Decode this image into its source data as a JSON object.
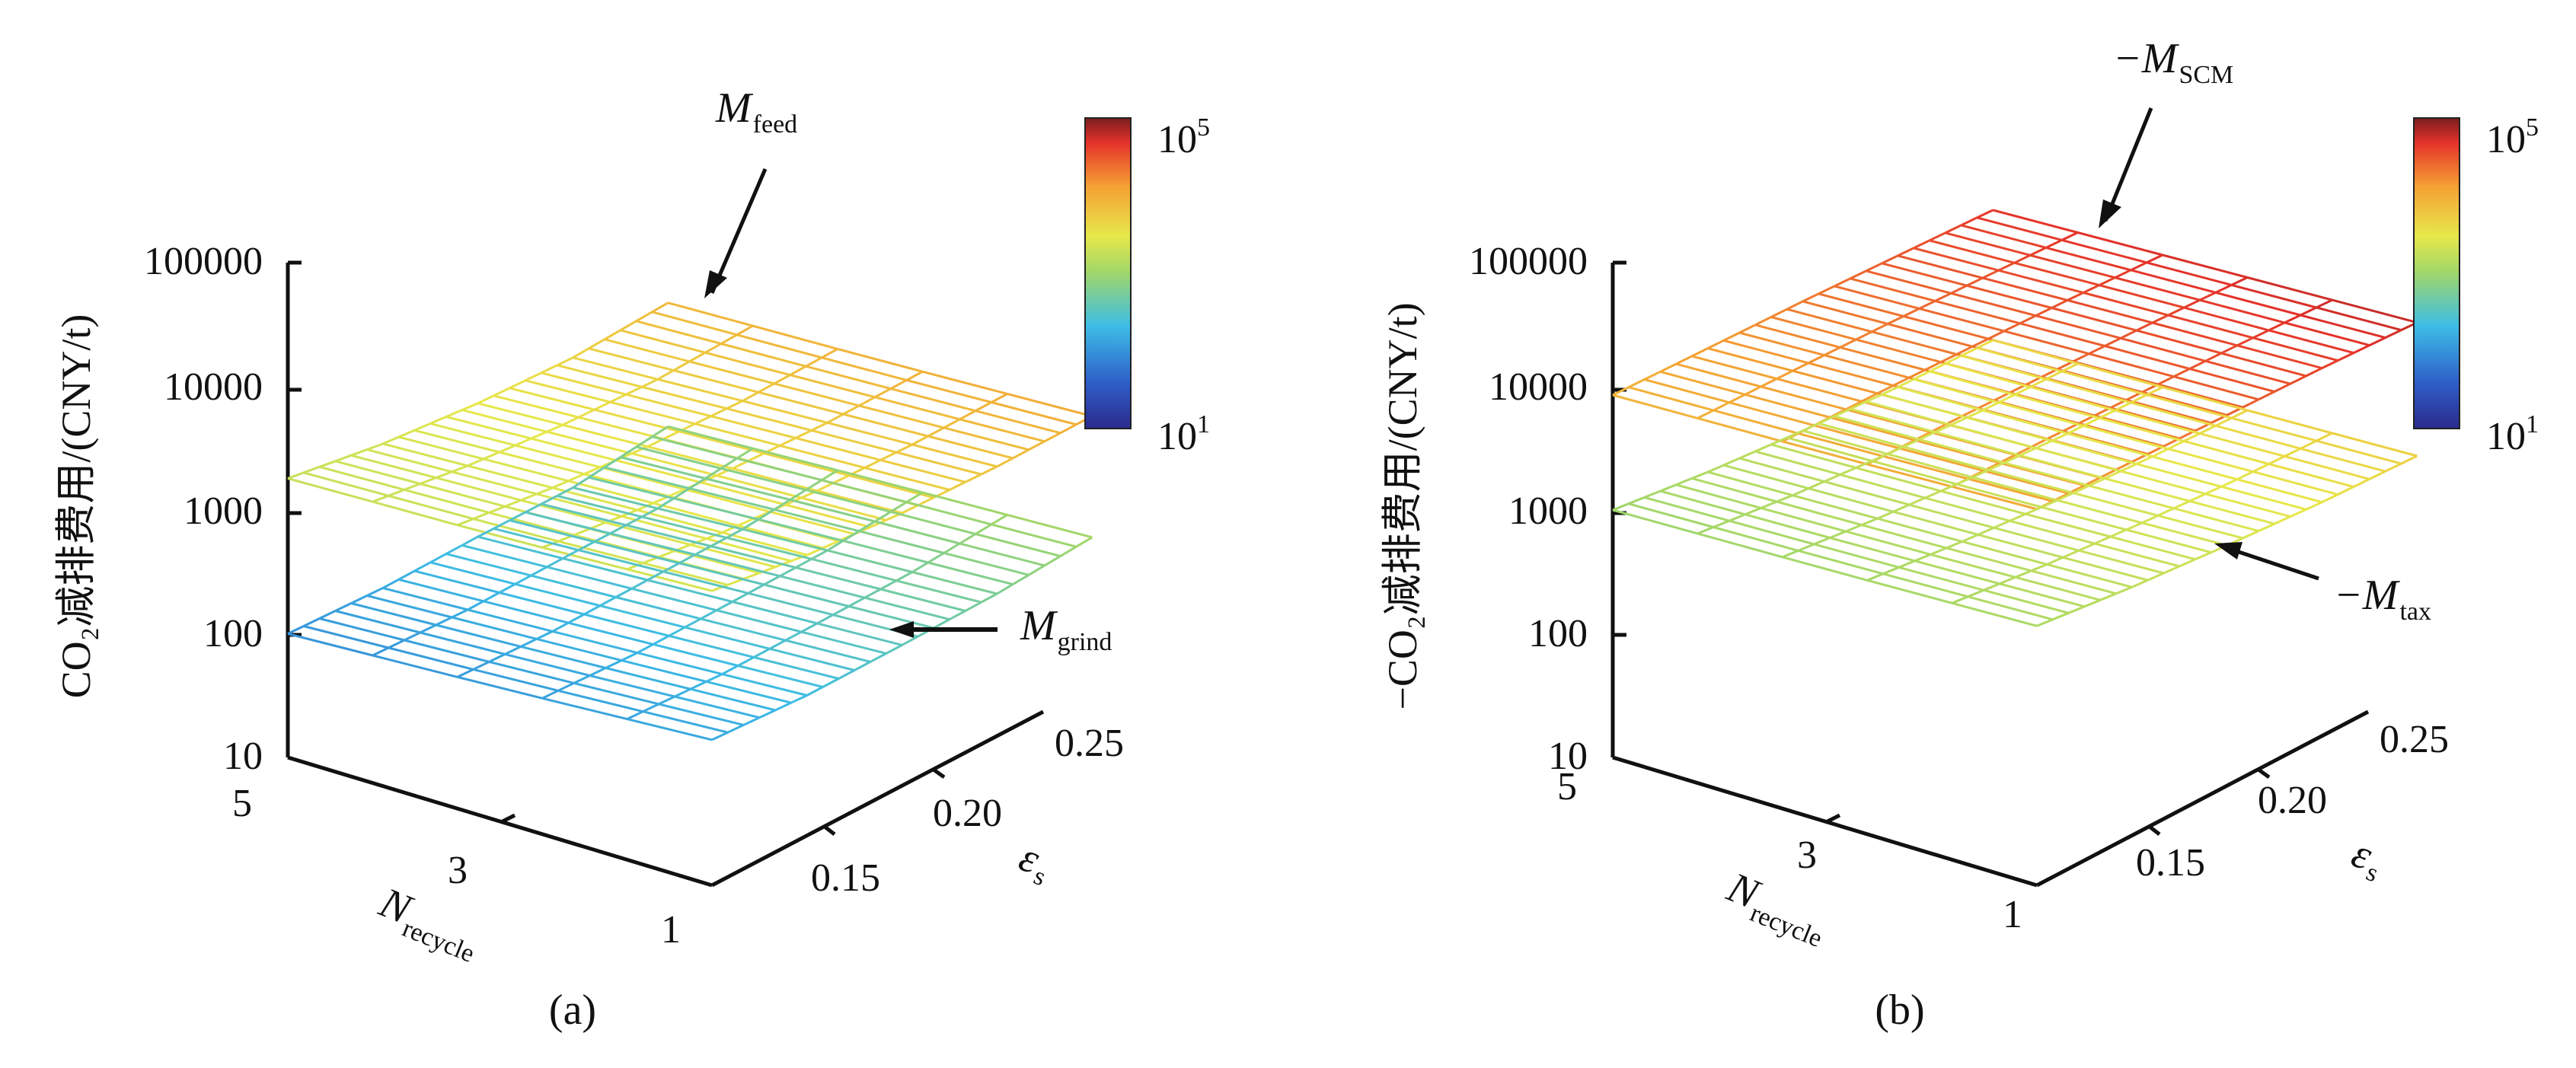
{
  "chart_data": [
    {
      "type": "surface3d",
      "panel_label": "(a)",
      "ylabel": "CO₂减排费用/(CNY/t)",
      "zticks": [
        "100000",
        "10000",
        "1000",
        "100",
        "10"
      ],
      "zlim": [
        10,
        100000
      ],
      "zscale": "log",
      "x_name": "N",
      "x_sub": "recycle",
      "x_ticks": [
        "5",
        "3",
        "1"
      ],
      "eps_name": "ε",
      "eps_sub": "s",
      "eps_ticks": [
        "0.15",
        "0.20",
        "0.25"
      ],
      "colorbar": {
        "max_base": "10",
        "max_exp": "5",
        "min_base": "10",
        "min_exp": "1",
        "range": [
          10,
          100000
        ]
      },
      "series": [
        {
          "name_main": "M",
          "name_sub": "feed",
          "prefix": "",
          "values": [
            [
              1800,
              2200,
              3000,
              4500,
              8000
            ],
            [
              2000,
              2600,
              3600,
              5400,
              9000
            ],
            [
              2400,
              3000,
              4200,
              6400,
              10500
            ]
          ]
        },
        {
          "name_main": "M",
          "name_sub": "grind",
          "prefix": "",
          "values": [
            [
              100,
              150,
              250,
              400,
              800
            ],
            [
              120,
              180,
              300,
              500,
              950
            ],
            [
              150,
              220,
              360,
              600,
              1100
            ]
          ]
        }
      ]
    },
    {
      "type": "surface3d",
      "panel_label": "(b)",
      "ylabel": "−CO₂减排费用/(CNY/t)",
      "zticks": [
        "100000",
        "10000",
        "1000",
        "100",
        "10"
      ],
      "zlim": [
        10,
        100000
      ],
      "zscale": "log",
      "x_name": "N",
      "x_sub": "recycle",
      "x_ticks": [
        "5",
        "3",
        "1"
      ],
      "eps_name": "ε",
      "eps_sub": "s",
      "eps_ticks": [
        "0.15",
        "0.20",
        "0.25"
      ],
      "colorbar": {
        "max_base": "10",
        "max_exp": "5",
        "min_base": "10",
        "min_exp": "1",
        "range": [
          10,
          100000
        ]
      },
      "series": [
        {
          "name_main": "M",
          "name_sub": "SCM",
          "prefix": "−",
          "values": [
            [
              8500,
              13000,
              20000,
              30000,
              45000
            ],
            [
              9500,
              15000,
              23000,
              35000,
              52000
            ],
            [
              11000,
              17000,
              26000,
              40000,
              60000
            ]
          ]
        },
        {
          "name_main": "M",
          "name_sub": "tax",
          "prefix": "−",
          "values": [
            [
              1000,
              1300,
              1800,
              2600,
              4000
            ],
            [
              1100,
              1450,
              2000,
              2900,
              4400
            ],
            [
              1250,
              1650,
              2300,
              3300,
              5000
            ]
          ]
        }
      ]
    }
  ]
}
